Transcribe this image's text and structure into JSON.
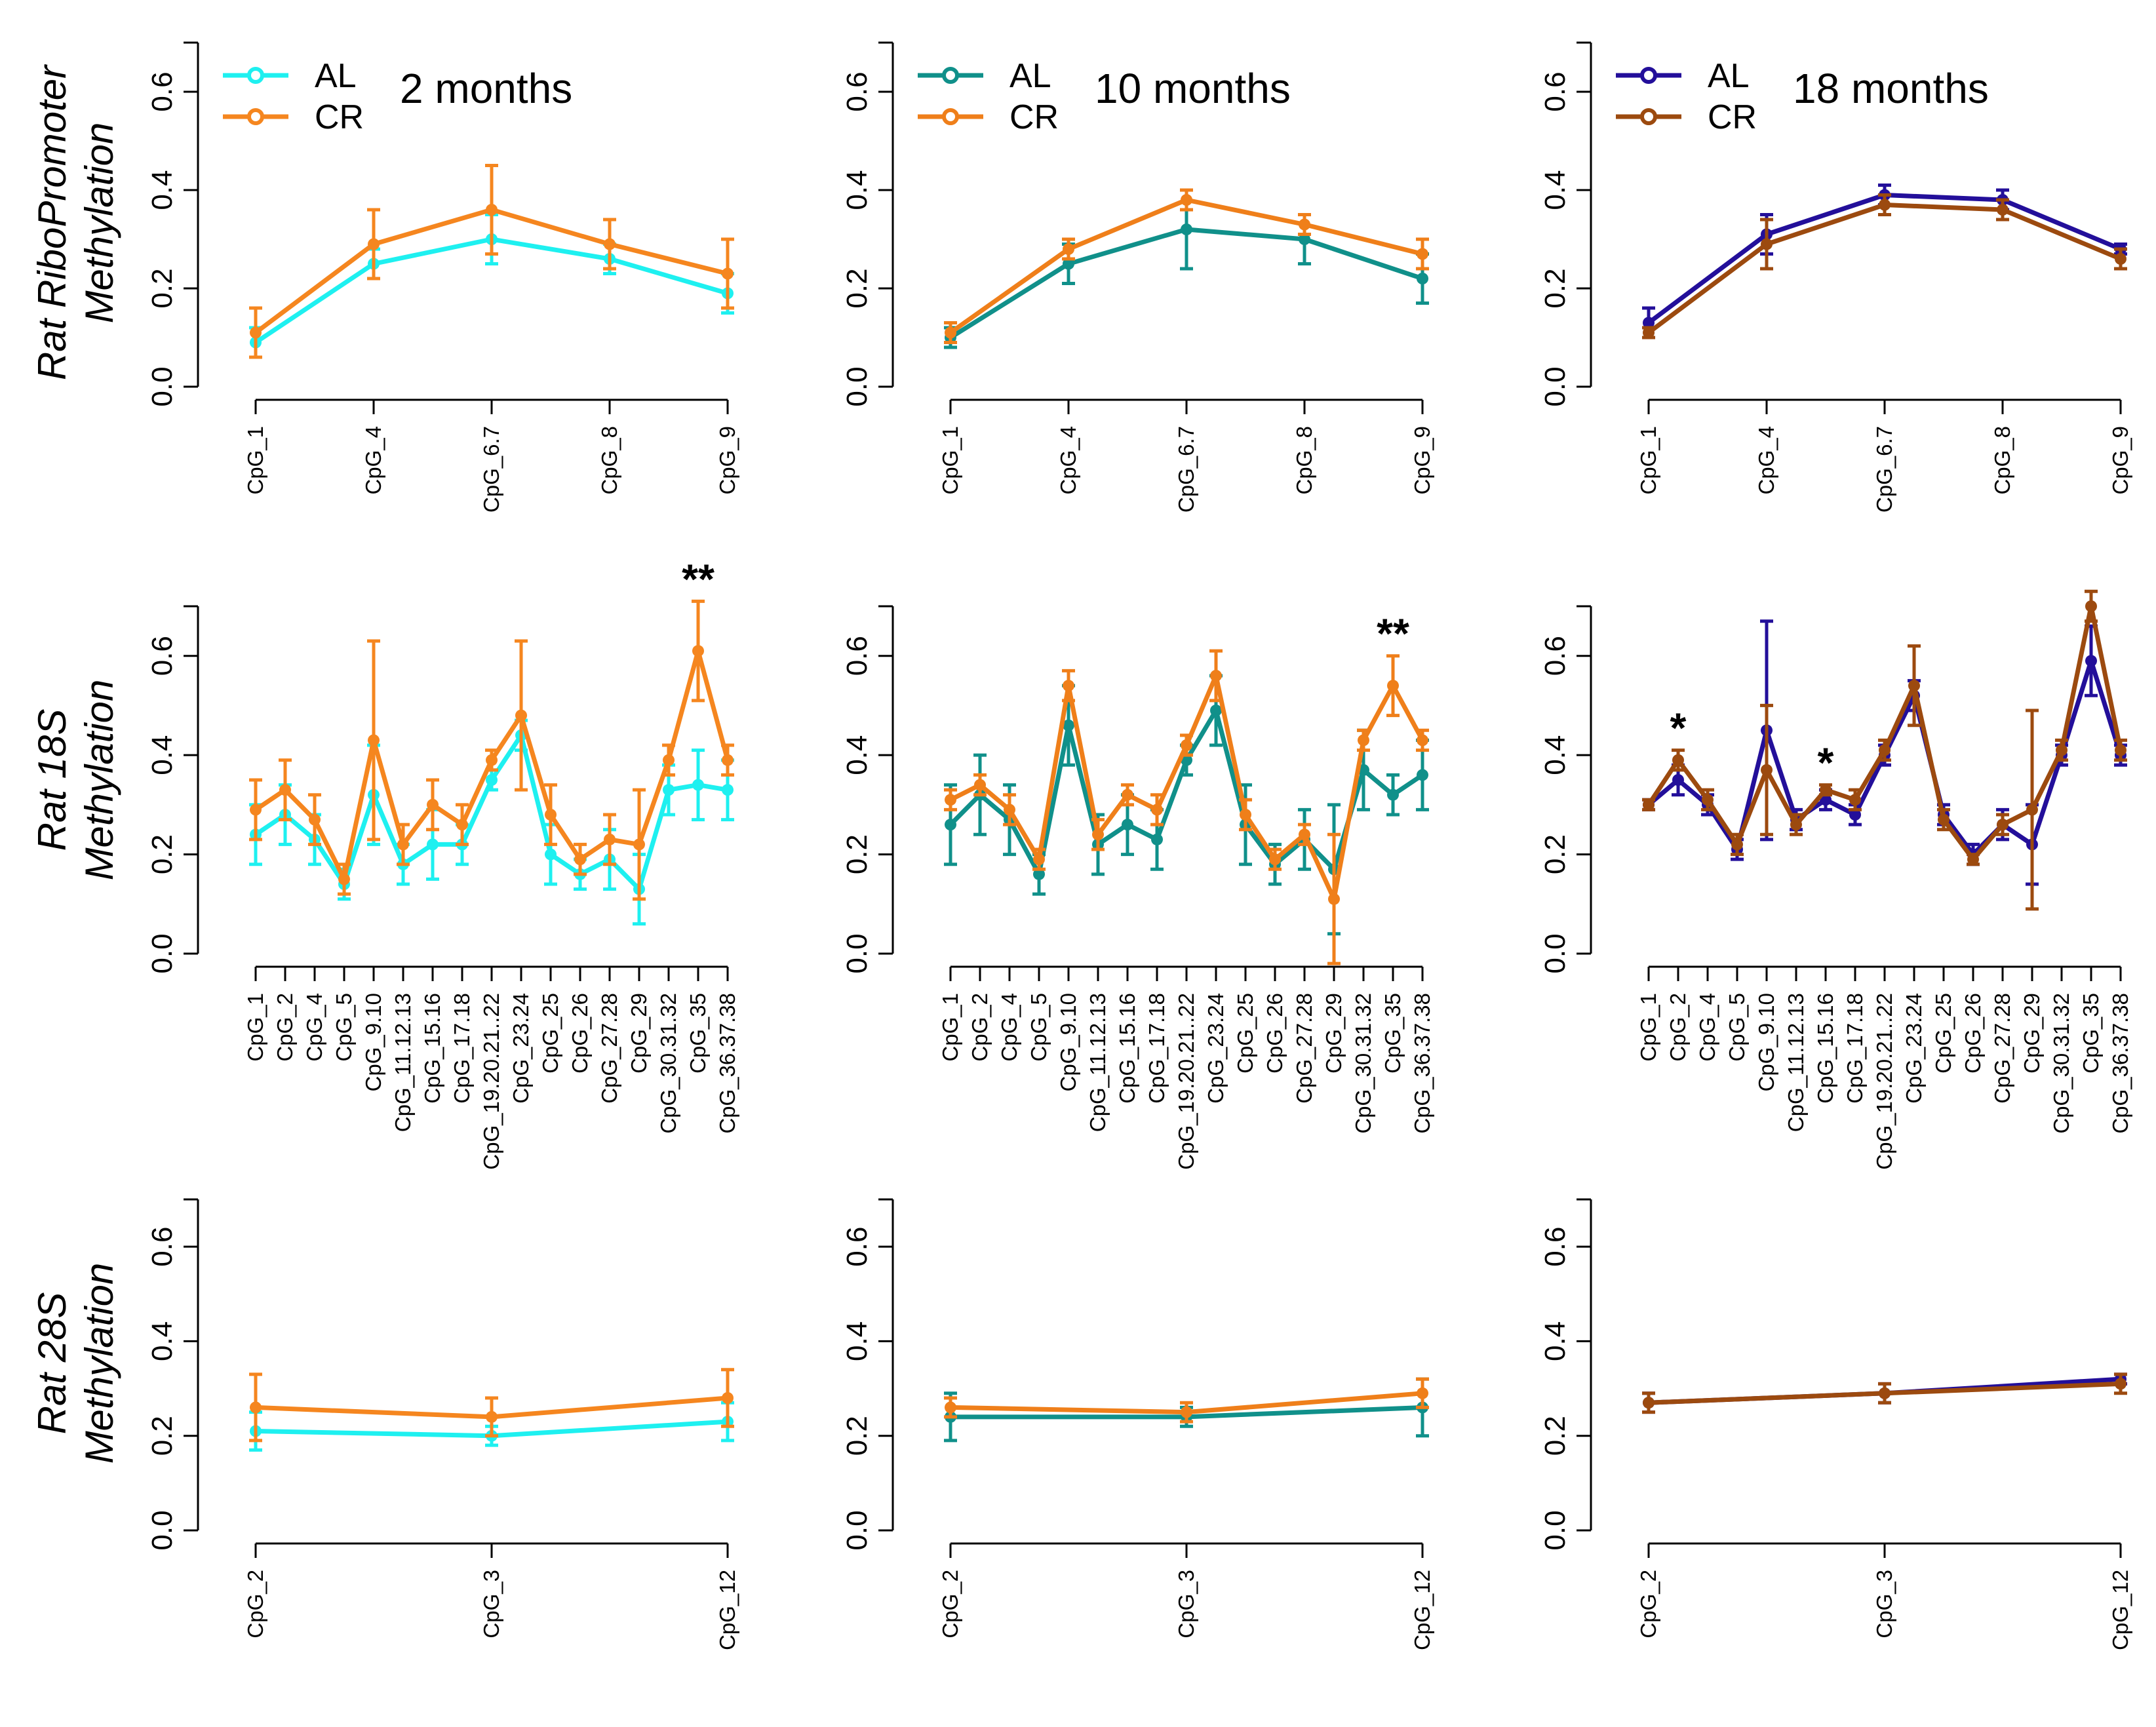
{
  "figure": {
    "row_labels": [
      [
        "Rat RiboPromoter",
        "Methylation"
      ],
      [
        "Rat 18S",
        "Methylation"
      ],
      [
        "Rat 28S",
        "Methylation"
      ]
    ],
    "column_titles": [
      "2 months",
      "10 months",
      "18 months"
    ],
    "colors": {
      "AL": [
        "#1ef0f0",
        "#10908a",
        "#230f9a"
      ],
      "CR": [
        "#f5861f",
        "#ef7f1a",
        "#9c4a0f"
      ]
    }
  },
  "chart_data": [
    {
      "type": "line",
      "row": 0,
      "col": 0,
      "title": "2 months",
      "legend": [
        "AL",
        "CR"
      ],
      "ylim": [
        0,
        0.7
      ],
      "yticks": [
        "0.0",
        "0.2",
        "0.4",
        "0.6"
      ],
      "categories": [
        "CpG_1",
        "CpG_4",
        "CpG_6.7",
        "CpG_8",
        "CpG_9"
      ],
      "series": [
        {
          "name": "AL",
          "values": [
            0.09,
            0.25,
            0.3,
            0.26,
            0.19
          ],
          "err": [
            0.03,
            0.03,
            0.05,
            0.03,
            0.04
          ]
        },
        {
          "name": "CR",
          "values": [
            0.11,
            0.29,
            0.36,
            0.29,
            0.23
          ],
          "err": [
            0.05,
            0.07,
            0.09,
            0.05,
            0.07
          ]
        }
      ],
      "annotations": []
    },
    {
      "type": "line",
      "row": 0,
      "col": 1,
      "title": "10 months",
      "legend": [
        "AL",
        "CR"
      ],
      "ylim": [
        0,
        0.7
      ],
      "yticks": [
        "0.0",
        "0.2",
        "0.4",
        "0.6"
      ],
      "categories": [
        "CpG_1",
        "CpG_4",
        "CpG_6.7",
        "CpG_8",
        "CpG_9"
      ],
      "series": [
        {
          "name": "AL",
          "values": [
            0.1,
            0.25,
            0.32,
            0.3,
            0.22
          ],
          "err": [
            0.02,
            0.04,
            0.08,
            0.05,
            0.05
          ]
        },
        {
          "name": "CR",
          "values": [
            0.11,
            0.28,
            0.38,
            0.33,
            0.27
          ],
          "err": [
            0.02,
            0.02,
            0.02,
            0.02,
            0.03
          ]
        }
      ],
      "annotations": []
    },
    {
      "type": "line",
      "row": 0,
      "col": 2,
      "title": "18 months",
      "legend": [
        "AL",
        "CR"
      ],
      "ylim": [
        0,
        0.7
      ],
      "yticks": [
        "0.0",
        "0.2",
        "0.4",
        "0.6"
      ],
      "categories": [
        "CpG_1",
        "CpG_4",
        "CpG_6.7",
        "CpG_8",
        "CpG_9"
      ],
      "series": [
        {
          "name": "AL",
          "values": [
            0.13,
            0.31,
            0.39,
            0.38,
            0.28
          ],
          "err": [
            0.03,
            0.04,
            0.02,
            0.02,
            0.01
          ]
        },
        {
          "name": "CR",
          "values": [
            0.11,
            0.29,
            0.37,
            0.36,
            0.26
          ],
          "err": [
            0.01,
            0.05,
            0.02,
            0.02,
            0.02
          ]
        }
      ],
      "annotations": []
    },
    {
      "type": "line",
      "row": 1,
      "col": 0,
      "legend": [],
      "ylim": [
        0,
        0.7
      ],
      "yticks": [
        "0.0",
        "0.2",
        "0.4",
        "0.6"
      ],
      "categories": [
        "CpG_1",
        "CpG_2",
        "CpG_4",
        "CpG_5",
        "CpG_9.10",
        "CpG_11.12.13",
        "CpG_15.16",
        "CpG_17.18",
        "CpG_19.20.21..22",
        "CpG_23.24",
        "CpG_25",
        "CpG_26",
        "CpG_27.28",
        "CpG_29",
        "CpG_30.31.32",
        "CpG_35",
        "CpG_36.37.38"
      ],
      "series": [
        {
          "name": "AL",
          "values": [
            0.24,
            0.28,
            0.23,
            0.14,
            0.32,
            0.18,
            0.22,
            0.22,
            0.35,
            0.44,
            0.2,
            0.16,
            0.19,
            0.13,
            0.33,
            0.34,
            0.33
          ],
          "err": [
            0.06,
            0.06,
            0.05,
            0.03,
            0.1,
            0.04,
            0.07,
            0.04,
            0.02,
            0.03,
            0.06,
            0.03,
            0.06,
            0.07,
            0.05,
            0.07,
            0.06
          ]
        },
        {
          "name": "CR",
          "values": [
            0.29,
            0.33,
            0.27,
            0.15,
            0.43,
            0.22,
            0.3,
            0.26,
            0.39,
            0.48,
            0.28,
            0.19,
            0.23,
            0.22,
            0.39,
            0.61,
            0.39
          ],
          "err": [
            0.06,
            0.06,
            0.05,
            0.03,
            0.2,
            0.04,
            0.05,
            0.04,
            0.02,
            0.15,
            0.06,
            0.03,
            0.05,
            0.11,
            0.03,
            0.1,
            0.03
          ]
        }
      ],
      "annotations": [
        {
          "text": "**",
          "category": "CpG_35"
        }
      ]
    },
    {
      "type": "line",
      "row": 1,
      "col": 1,
      "legend": [],
      "ylim": [
        0,
        0.7
      ],
      "yticks": [
        "0.0",
        "0.2",
        "0.4",
        "0.6"
      ],
      "categories": [
        "CpG_1",
        "CpG_2",
        "CpG_4",
        "CpG_5",
        "CpG_9.10",
        "CpG_11.12.13",
        "CpG_15.16",
        "CpG_17.18",
        "CpG_19.20.21..22",
        "CpG_23.24",
        "CpG_25",
        "CpG_26",
        "CpG_27.28",
        "CpG_29",
        "CpG_30.31.32",
        "CpG_35",
        "CpG_36.37.38"
      ],
      "series": [
        {
          "name": "AL",
          "values": [
            0.26,
            0.32,
            0.27,
            0.16,
            0.46,
            0.22,
            0.26,
            0.23,
            0.39,
            0.49,
            0.26,
            0.18,
            0.23,
            0.17,
            0.37,
            0.32,
            0.36
          ],
          "err": [
            0.08,
            0.08,
            0.07,
            0.04,
            0.08,
            0.06,
            0.06,
            0.06,
            0.03,
            0.07,
            0.08,
            0.04,
            0.06,
            0.13,
            0.08,
            0.04,
            0.07
          ]
        },
        {
          "name": "CR",
          "values": [
            0.31,
            0.34,
            0.29,
            0.19,
            0.54,
            0.24,
            0.32,
            0.29,
            0.42,
            0.56,
            0.28,
            0.19,
            0.24,
            0.11,
            0.43,
            0.54,
            0.43
          ],
          "err": [
            0.02,
            0.02,
            0.03,
            0.02,
            0.03,
            0.03,
            0.02,
            0.03,
            0.02,
            0.05,
            0.03,
            0.02,
            0.02,
            0.13,
            0.02,
            0.06,
            0.02
          ]
        }
      ],
      "annotations": [
        {
          "text": "**",
          "category": "CpG_35"
        }
      ]
    },
    {
      "type": "line",
      "row": 1,
      "col": 2,
      "legend": [],
      "ylim": [
        0,
        0.7
      ],
      "yticks": [
        "0.0",
        "0.2",
        "0.4",
        "0.6"
      ],
      "categories": [
        "CpG_1",
        "CpG_2",
        "CpG_4",
        "CpG_5",
        "CpG_9.10",
        "CpG_11.12.13",
        "CpG_15.16",
        "CpG_17.18",
        "CpG_19.20.21..22",
        "CpG_23.24",
        "CpG_25",
        "CpG_26",
        "CpG_27.28",
        "CpG_29",
        "CpG_30.31.32",
        "CpG_35",
        "CpG_36.37.38"
      ],
      "series": [
        {
          "name": "AL",
          "values": [
            0.3,
            0.35,
            0.3,
            0.21,
            0.45,
            0.27,
            0.31,
            0.28,
            0.4,
            0.52,
            0.28,
            0.2,
            0.26,
            0.22,
            0.4,
            0.59,
            0.4
          ],
          "err": [
            0.01,
            0.03,
            0.02,
            0.02,
            0.22,
            0.02,
            0.02,
            0.02,
            0.02,
            0.03,
            0.02,
            0.02,
            0.03,
            0.08,
            0.02,
            0.07,
            0.02
          ]
        },
        {
          "name": "CR",
          "values": [
            0.3,
            0.39,
            0.31,
            0.22,
            0.37,
            0.26,
            0.33,
            0.31,
            0.41,
            0.54,
            0.27,
            0.19,
            0.26,
            0.29,
            0.41,
            0.7,
            0.41
          ],
          "err": [
            0.01,
            0.02,
            0.02,
            0.02,
            0.13,
            0.02,
            0.01,
            0.02,
            0.02,
            0.08,
            0.02,
            0.01,
            0.02,
            0.2,
            0.02,
            0.03,
            0.02
          ]
        }
      ],
      "annotations": [
        {
          "text": "*",
          "category": "CpG_2"
        },
        {
          "text": "*",
          "category": "CpG_15.16"
        }
      ]
    },
    {
      "type": "line",
      "row": 2,
      "col": 0,
      "legend": [],
      "ylim": [
        0,
        0.7
      ],
      "yticks": [
        "0.0",
        "0.2",
        "0.4",
        "0.6"
      ],
      "categories": [
        "CpG_2",
        "CpG_3",
        "CpG_12"
      ],
      "series": [
        {
          "name": "AL",
          "values": [
            0.21,
            0.2,
            0.23
          ],
          "err": [
            0.04,
            0.02,
            0.04
          ]
        },
        {
          "name": "CR",
          "values": [
            0.26,
            0.24,
            0.28
          ],
          "err": [
            0.07,
            0.04,
            0.06
          ]
        }
      ],
      "annotations": []
    },
    {
      "type": "line",
      "row": 2,
      "col": 1,
      "legend": [],
      "ylim": [
        0,
        0.7
      ],
      "yticks": [
        "0.0",
        "0.2",
        "0.4",
        "0.6"
      ],
      "categories": [
        "CpG_2",
        "CpG_3",
        "CpG_12"
      ],
      "series": [
        {
          "name": "AL",
          "values": [
            0.24,
            0.24,
            0.26
          ],
          "err": [
            0.05,
            0.02,
            0.06
          ]
        },
        {
          "name": "CR",
          "values": [
            0.26,
            0.25,
            0.29
          ],
          "err": [
            0.02,
            0.02,
            0.03
          ]
        }
      ],
      "annotations": []
    },
    {
      "type": "line",
      "row": 2,
      "col": 2,
      "legend": [],
      "ylim": [
        0,
        0.7
      ],
      "yticks": [
        "0.0",
        "0.2",
        "0.4",
        "0.6"
      ],
      "categories": [
        "CpG_2",
        "CpG_3",
        "CpG_12"
      ],
      "series": [
        {
          "name": "AL",
          "values": [
            0.27,
            0.29,
            0.32
          ],
          "err": [
            0.02,
            0.02,
            0.01
          ]
        },
        {
          "name": "CR",
          "values": [
            0.27,
            0.29,
            0.31
          ],
          "err": [
            0.02,
            0.02,
            0.02
          ]
        }
      ],
      "annotations": []
    }
  ]
}
